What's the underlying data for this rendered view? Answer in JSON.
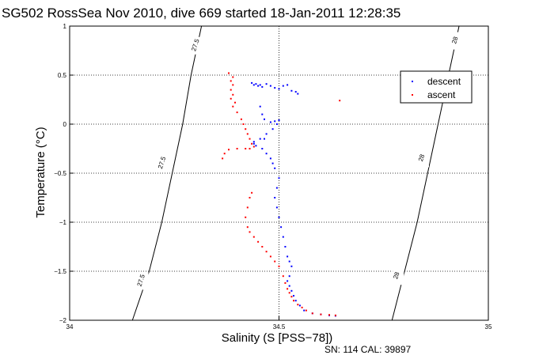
{
  "chart_data": {
    "type": "scatter",
    "title": "SG502 RossSea Nov 2010, dive 669 started 18-Jan-2011 12:28:35",
    "xlabel": "Salinity (S [PSS−78])",
    "ylabel": "Temperature (°C)",
    "xlim": [
      34,
      35
    ],
    "ylim": [
      -2,
      1
    ],
    "x_ticks": [
      "34",
      "34.5",
      "35"
    ],
    "y_ticks": [
      "−2",
      "−1.5",
      "−1",
      "−0.5",
      "0",
      "0.5",
      "1"
    ],
    "grid": true,
    "grid_style": "dotted",
    "legend_position": "top-right",
    "footer": "SN: 114  CAL: 39897",
    "contours": [
      {
        "label": "27.5",
        "points": [
          [
            34.15,
            -2.0
          ],
          [
            34.19,
            -1.5
          ],
          [
            34.22,
            -1.0
          ],
          [
            34.245,
            -0.5
          ],
          [
            34.27,
            0.0
          ],
          [
            34.29,
            0.5
          ],
          [
            34.315,
            1.0
          ]
        ],
        "label_positions": [
          [
            34.175,
            -1.6
          ],
          [
            34.225,
            -0.4
          ],
          [
            34.305,
            0.8
          ]
        ]
      },
      {
        "label": "28",
        "points": [
          [
            34.77,
            -2.0
          ],
          [
            34.8,
            -1.5
          ],
          [
            34.83,
            -1.0
          ],
          [
            34.855,
            -0.5
          ],
          [
            34.88,
            0.0
          ],
          [
            34.905,
            0.5
          ],
          [
            34.93,
            1.0
          ]
        ],
        "label_positions": [
          [
            34.785,
            -1.55
          ],
          [
            34.845,
            -0.35
          ],
          [
            34.925,
            0.85
          ]
        ]
      }
    ],
    "series": [
      {
        "name": "descent",
        "color": "#0000ff",
        "points": [
          [
            34.435,
            0.42
          ],
          [
            34.44,
            0.4
          ],
          [
            34.445,
            0.41
          ],
          [
            34.45,
            0.39
          ],
          [
            34.455,
            0.4
          ],
          [
            34.46,
            0.38
          ],
          [
            34.47,
            0.41
          ],
          [
            34.48,
            0.39
          ],
          [
            34.49,
            0.37
          ],
          [
            34.5,
            0.36
          ],
          [
            34.51,
            0.39
          ],
          [
            34.52,
            0.4
          ],
          [
            34.53,
            0.34
          ],
          [
            34.54,
            0.33
          ],
          [
            34.545,
            0.31
          ],
          [
            34.455,
            0.18
          ],
          [
            34.46,
            0.1
          ],
          [
            34.465,
            0.05
          ],
          [
            34.48,
            0.02
          ],
          [
            34.49,
            0.03
          ],
          [
            34.5,
            0.04
          ],
          [
            34.495,
            0.0
          ],
          [
            34.485,
            -0.05
          ],
          [
            34.47,
            -0.1
          ],
          [
            34.465,
            -0.15
          ],
          [
            34.455,
            -0.15
          ],
          [
            34.44,
            -0.18
          ],
          [
            34.44,
            -0.2
          ],
          [
            34.445,
            -0.22
          ],
          [
            34.46,
            -0.25
          ],
          [
            34.47,
            -0.3
          ],
          [
            34.48,
            -0.35
          ],
          [
            34.485,
            -0.4
          ],
          [
            34.49,
            -0.45
          ],
          [
            34.5,
            -0.55
          ],
          [
            34.495,
            -0.65
          ],
          [
            34.49,
            -0.75
          ],
          [
            34.495,
            -0.85
          ],
          [
            34.5,
            -0.95
          ],
          [
            34.505,
            -1.05
          ],
          [
            34.51,
            -1.15
          ],
          [
            34.515,
            -1.25
          ],
          [
            34.52,
            -1.35
          ],
          [
            34.525,
            -1.4
          ],
          [
            34.53,
            -1.45
          ],
          [
            34.525,
            -1.55
          ],
          [
            34.52,
            -1.6
          ],
          [
            34.525,
            -1.65
          ],
          [
            34.53,
            -1.7
          ],
          [
            34.535,
            -1.75
          ],
          [
            34.54,
            -1.8
          ],
          [
            34.55,
            -1.85
          ],
          [
            34.56,
            -1.9
          ],
          [
            34.58,
            -1.93
          ],
          [
            34.6,
            -1.94
          ],
          [
            34.62,
            -1.95
          ],
          [
            34.635,
            -1.955
          ]
        ]
      },
      {
        "name": "ascent",
        "color": "#ff0000",
        "points": [
          [
            34.38,
            0.52
          ],
          [
            34.39,
            0.48
          ],
          [
            34.385,
            0.44
          ],
          [
            34.39,
            0.4
          ],
          [
            34.385,
            0.35
          ],
          [
            34.39,
            0.3
          ],
          [
            34.385,
            0.26
          ],
          [
            34.395,
            0.22
          ],
          [
            34.39,
            0.18
          ],
          [
            34.645,
            0.24
          ],
          [
            34.4,
            0.12
          ],
          [
            34.41,
            0.05
          ],
          [
            34.415,
            0.0
          ],
          [
            34.42,
            -0.05
          ],
          [
            34.425,
            -0.1
          ],
          [
            34.43,
            -0.15
          ],
          [
            34.435,
            -0.2
          ],
          [
            34.42,
            -0.25
          ],
          [
            34.4,
            -0.25
          ],
          [
            34.38,
            -0.26
          ],
          [
            34.37,
            -0.3
          ],
          [
            34.365,
            -0.35
          ],
          [
            34.43,
            -0.25
          ],
          [
            34.44,
            -0.23
          ],
          [
            34.435,
            -0.7
          ],
          [
            34.43,
            -0.75
          ],
          [
            34.425,
            -0.85
          ],
          [
            34.42,
            -0.95
          ],
          [
            34.425,
            -1.05
          ],
          [
            34.43,
            -1.1
          ],
          [
            34.44,
            -1.15
          ],
          [
            34.45,
            -1.2
          ],
          [
            34.46,
            -1.25
          ],
          [
            34.47,
            -1.3
          ],
          [
            34.48,
            -1.35
          ],
          [
            34.49,
            -1.4
          ],
          [
            34.5,
            -1.45
          ],
          [
            34.51,
            -1.55
          ],
          [
            34.515,
            -1.62
          ],
          [
            34.52,
            -1.68
          ],
          [
            34.525,
            -1.72
          ],
          [
            34.53,
            -1.76
          ],
          [
            34.535,
            -1.8
          ],
          [
            34.545,
            -1.84
          ],
          [
            34.555,
            -1.87
          ],
          [
            34.565,
            -1.9
          ],
          [
            34.58,
            -1.93
          ],
          [
            34.6,
            -1.94
          ],
          [
            34.62,
            -1.945
          ],
          [
            34.635,
            -1.95
          ]
        ]
      }
    ]
  }
}
